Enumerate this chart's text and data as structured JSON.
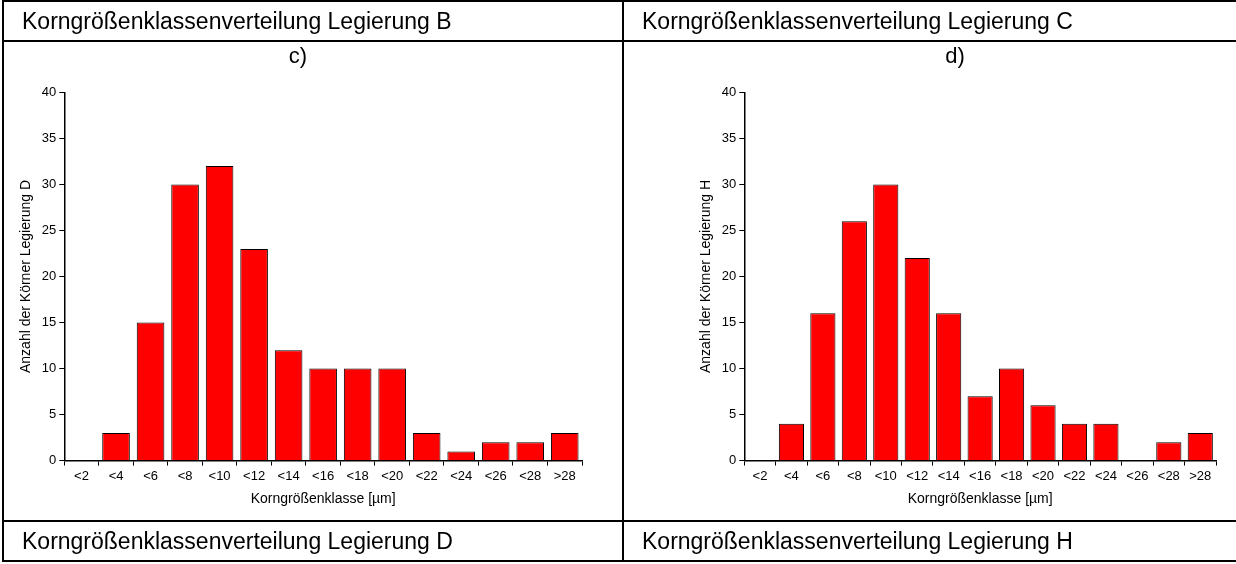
{
  "chart_data": [
    {
      "type": "bar",
      "title": "c)",
      "xlabel": "Korngrößenklasse [µm]",
      "ylabel": "Anzahl der Körner Legierung D",
      "categories": [
        "<2",
        "<4",
        "<6",
        "<8",
        "<10",
        "<12",
        "<14",
        "<16",
        "<18",
        "<20",
        "<22",
        "<24",
        "<26",
        "<28",
        ">28"
      ],
      "values": [
        0,
        3,
        15,
        30,
        32,
        23,
        12,
        10,
        10,
        10,
        3,
        1,
        2,
        2,
        3
      ],
      "color": "#ff0000",
      "ylim": [
        0,
        40
      ],
      "yticks": [
        0,
        5,
        10,
        15,
        20,
        25,
        30,
        35,
        40
      ],
      "annotations": [
        "Korngrößenklassenverteilung Legierung B",
        "Korngrößenklassenverteilung Legierung D"
      ]
    },
    {
      "type": "bar",
      "title": "d)",
      "xlabel": "Korngrößenklasse [µm]",
      "ylabel": "Anzahl der Körner Legierung H",
      "categories": [
        "<2",
        "<4",
        "<6",
        "<8",
        "<10",
        "<12",
        "<14",
        "<16",
        "<18",
        "<20",
        "<22",
        "<24",
        "<26",
        "<28",
        ">28"
      ],
      "values": [
        0,
        4,
        16,
        26,
        30,
        22,
        16,
        7,
        10,
        6,
        4,
        4,
        0,
        2,
        3
      ],
      "color": "#ff0000",
      "ylim": [
        0,
        40
      ],
      "yticks": [
        0,
        5,
        10,
        15,
        20,
        25,
        30,
        35,
        40
      ],
      "annotations": [
        "Korngrößenklassenverteilung Legierung C",
        "Korngrößenklassenverteilung Legierung H"
      ]
    }
  ]
}
